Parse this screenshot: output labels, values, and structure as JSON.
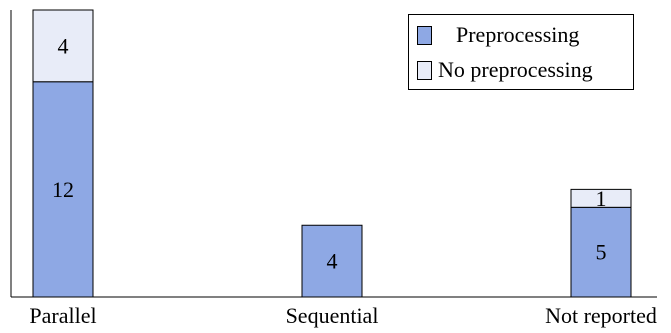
{
  "chart_data": {
    "type": "bar",
    "stacked": true,
    "categories": [
      "Parallel",
      "Sequential",
      "Not reported"
    ],
    "series": [
      {
        "name": "Preprocessing",
        "values": [
          12,
          4,
          5
        ],
        "color": "#8ea8e4"
      },
      {
        "name": "No preprocessing",
        "values": [
          4,
          0,
          1
        ],
        "color": "#e8ecf8"
      }
    ],
    "title": "",
    "xlabel": "",
    "ylabel": "",
    "ylim": [
      0,
      16
    ],
    "grid": false,
    "legend": "top-right"
  }
}
